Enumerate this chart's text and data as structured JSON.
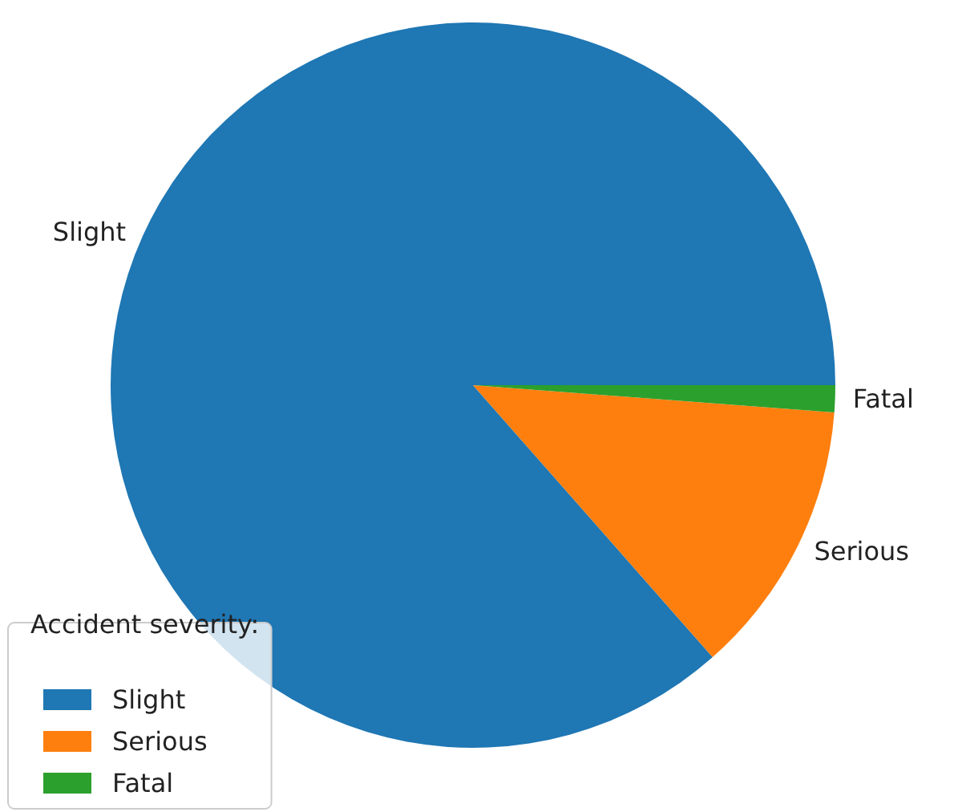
{
  "chart_data": {
    "type": "pie",
    "categories": [
      "Slight",
      "Serious",
      "Fatal"
    ],
    "values": [
      86.5,
      12.3,
      1.2
    ],
    "colors": [
      "#1f77b4",
      "#ff7f0e",
      "#2ca02c"
    ],
    "legend_title": "Accident severity:",
    "legend": "bottom left"
  }
}
